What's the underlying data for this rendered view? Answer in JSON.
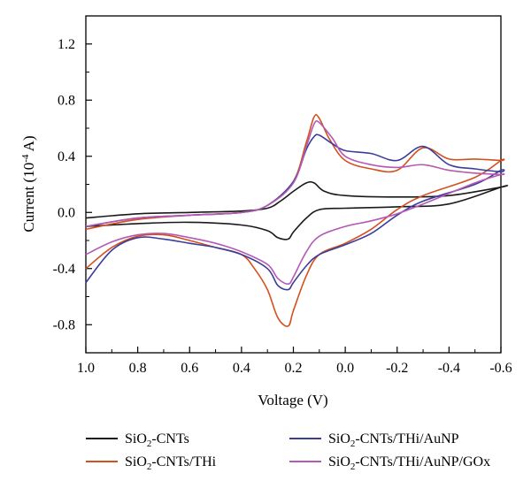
{
  "chart_data": {
    "type": "line",
    "title": "",
    "xlabel": "Voltage (V)",
    "ylabel": "Current (10-4 A)",
    "ylabel_parts": {
      "before": "Current (10",
      "sup": "-4",
      "after": " A)"
    },
    "x_reversed": true,
    "xlim": [
      1.0,
      -0.6
    ],
    "ylim": [
      -1.0,
      1.4
    ],
    "x_ticks": [
      1.0,
      0.8,
      0.6,
      0.4,
      0.2,
      0.0,
      -0.2,
      -0.4,
      -0.6
    ],
    "x_tick_labels": [
      "1.0",
      "0.8",
      "0.6",
      "0.4",
      "0.2",
      "0.0",
      "-0.2",
      "-0.4",
      "-0.6"
    ],
    "y_ticks": [
      -0.8,
      -0.4,
      0.0,
      0.4,
      0.8,
      1.2
    ],
    "y_tick_labels": [
      "-0.8",
      "-0.4",
      "0.0",
      "0.4",
      "0.8",
      "1.2"
    ],
    "grid": false,
    "legend_position": "bottom",
    "series": [
      {
        "name": "SiO2-CNTs",
        "label_parts": [
          "SiO",
          "2",
          "-CNTs"
        ],
        "color": "#1a1a1a",
        "x": [
          1.0,
          0.8,
          0.6,
          0.4,
          0.3,
          0.25,
          0.2,
          0.15,
          0.12,
          0.08,
          0.0,
          -0.2,
          -0.4,
          -0.6,
          -0.6,
          -0.4,
          -0.2,
          0.0,
          0.1,
          0.15,
          0.2,
          0.22,
          0.26,
          0.3,
          0.4,
          0.6,
          0.8,
          1.0
        ],
        "y": [
          -0.04,
          -0.01,
          0.0,
          0.01,
          0.03,
          0.08,
          0.15,
          0.21,
          0.21,
          0.15,
          0.12,
          0.11,
          0.12,
          0.18,
          0.18,
          0.06,
          0.04,
          0.03,
          0.02,
          -0.04,
          -0.14,
          -0.19,
          -0.18,
          -0.13,
          -0.09,
          -0.07,
          -0.08,
          -0.1
        ]
      },
      {
        "name": "SiO2-CNTs/THi",
        "label_parts": [
          "SiO",
          "2",
          "-CNTs/THi"
        ],
        "color": "#d4501e",
        "x": [
          1.0,
          0.8,
          0.6,
          0.4,
          0.3,
          0.2,
          0.15,
          0.12,
          0.1,
          0.06,
          0.0,
          -0.1,
          -0.2,
          -0.3,
          -0.4,
          -0.5,
          -0.6,
          -0.6,
          -0.5,
          -0.3,
          -0.2,
          -0.1,
          0.0,
          0.1,
          0.15,
          0.2,
          0.22,
          0.26,
          0.3,
          0.35,
          0.4,
          0.5,
          0.6,
          0.7,
          0.8,
          0.9,
          1.0
        ],
        "y": [
          -0.12,
          -0.05,
          -0.02,
          0.0,
          0.05,
          0.22,
          0.5,
          0.68,
          0.67,
          0.52,
          0.37,
          0.31,
          0.3,
          0.46,
          0.38,
          0.38,
          0.37,
          0.37,
          0.25,
          0.12,
          0.02,
          -0.12,
          -0.22,
          -0.3,
          -0.45,
          -0.7,
          -0.81,
          -0.75,
          -0.55,
          -0.4,
          -0.3,
          -0.25,
          -0.2,
          -0.16,
          -0.17,
          -0.25,
          -0.4
        ]
      },
      {
        "name": "SiO2-CNTs/THi/AuNP",
        "label_parts": [
          "SiO",
          "2",
          "-CNTs/THi/AuNP"
        ],
        "color": "#3c3c9c",
        "x": [
          1.0,
          0.8,
          0.6,
          0.4,
          0.3,
          0.2,
          0.15,
          0.12,
          0.1,
          0.05,
          0.0,
          -0.1,
          -0.2,
          -0.3,
          -0.4,
          -0.5,
          -0.6,
          -0.6,
          -0.5,
          -0.3,
          -0.2,
          -0.1,
          0.0,
          0.1,
          0.15,
          0.2,
          0.22,
          0.26,
          0.3,
          0.4,
          0.5,
          0.6,
          0.7,
          0.8,
          0.9,
          1.0
        ],
        "y": [
          -0.1,
          -0.04,
          -0.02,
          0.0,
          0.05,
          0.22,
          0.45,
          0.54,
          0.55,
          0.49,
          0.44,
          0.42,
          0.37,
          0.47,
          0.34,
          0.31,
          0.29,
          0.3,
          0.2,
          0.08,
          -0.02,
          -0.15,
          -0.23,
          -0.3,
          -0.38,
          -0.5,
          -0.55,
          -0.52,
          -0.4,
          -0.3,
          -0.25,
          -0.22,
          -0.19,
          -0.18,
          -0.27,
          -0.5
        ]
      },
      {
        "name": "SiO2-CNTs/THi/AuNP/GOx",
        "label_parts": [
          "SiO",
          "2",
          "-CNTs/THi/AuNP/GOx"
        ],
        "color": "#b45ab4",
        "x": [
          1.0,
          0.8,
          0.6,
          0.4,
          0.3,
          0.2,
          0.15,
          0.12,
          0.1,
          0.05,
          0.0,
          -0.1,
          -0.2,
          -0.3,
          -0.4,
          -0.5,
          -0.6,
          -0.6,
          -0.5,
          -0.3,
          -0.2,
          -0.1,
          0.0,
          0.1,
          0.15,
          0.2,
          0.22,
          0.26,
          0.3,
          0.4,
          0.5,
          0.6,
          0.7,
          0.8,
          0.9,
          1.0
        ],
        "y": [
          -0.1,
          -0.04,
          -0.02,
          0.0,
          0.05,
          0.21,
          0.47,
          0.63,
          0.64,
          0.53,
          0.4,
          0.34,
          0.32,
          0.34,
          0.3,
          0.28,
          0.27,
          0.27,
          0.21,
          0.06,
          -0.01,
          -0.06,
          -0.1,
          -0.17,
          -0.28,
          -0.46,
          -0.51,
          -0.47,
          -0.37,
          -0.28,
          -0.22,
          -0.18,
          -0.15,
          -0.16,
          -0.21,
          -0.3
        ]
      }
    ]
  }
}
